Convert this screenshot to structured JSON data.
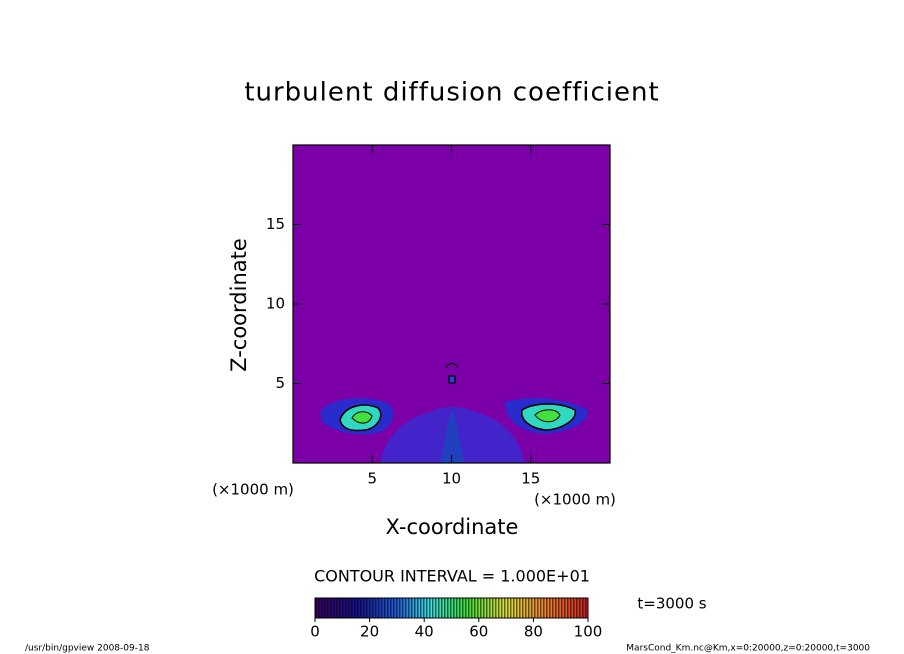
{
  "chart_data": {
    "type": "contour",
    "title": "turbulent diffusion coefficient",
    "x_label": "X-coordinate",
    "y_label": "Z-coordinate",
    "x_unit": "(×1000 m)",
    "y_unit": "(×1000 m)",
    "xlim": [
      0,
      20
    ],
    "ylim": [
      0,
      20
    ],
    "xticks": [
      5,
      10,
      15
    ],
    "yticks": [
      5,
      10,
      15
    ],
    "contour_interval": "CONTOUR INTERVAL = 1.000E+01",
    "time": "t=3000 s",
    "colorbar": {
      "lim": [
        0,
        100
      ],
      "ticks": [
        0,
        20,
        40,
        60,
        80,
        100
      ]
    }
  },
  "footer": {
    "left": "/usr/bin/gpview   2008-09-18",
    "right": "MarsCond_Km.nc@Km,x=0:20000,z=0:20000,t=3000"
  }
}
